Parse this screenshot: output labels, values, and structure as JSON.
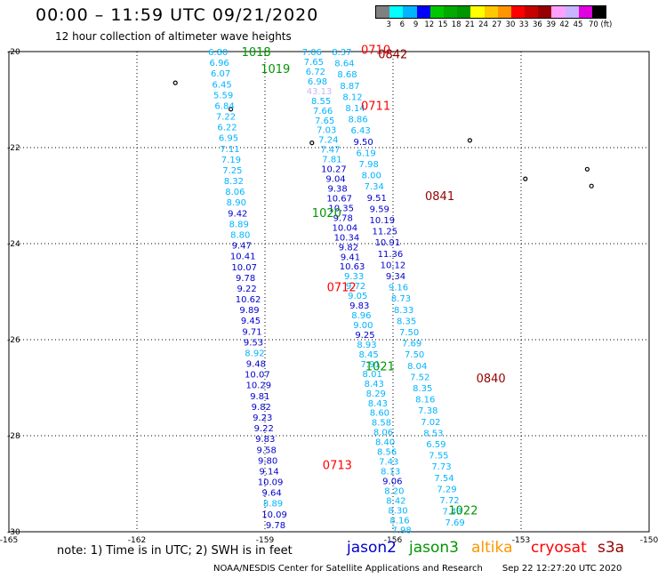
{
  "header": {
    "title": "00:00 – 11:59 UTC 09/21/2020",
    "subtitle": "12 hour collection of altimeter wave heights"
  },
  "legend": {
    "colors": [
      "#808080",
      "#00ffff",
      "#00b4ff",
      "#0000ff",
      "#00c800",
      "#00aa00",
      "#009600",
      "#ffff00",
      "#ffc800",
      "#ff9600",
      "#ff0000",
      "#c80000",
      "#960000",
      "#ffa0ff",
      "#c8b4ff",
      "#e000e0",
      "#000000"
    ],
    "labels": [
      "3",
      "6",
      "9",
      "12",
      "15",
      "18",
      "21",
      "24",
      "27",
      "30",
      "33",
      "36",
      "39",
      "42",
      "45",
      "70 (ft)"
    ]
  },
  "axes": {
    "lon_ticks": [
      "-165",
      "-162",
      "-159",
      "-156",
      "-153",
      "-150"
    ],
    "lat_ticks": [
      "-20",
      "-22",
      "-24",
      "-26",
      "-28",
      "-30"
    ],
    "lat_range": [
      -30,
      -20
    ],
    "lon_range": [
      -165,
      -150
    ]
  },
  "footer": {
    "note": "note: 1) Time is in UTC; 2) SWH is in feet",
    "satellites": [
      {
        "name": "jason2",
        "color": "#0000cc"
      },
      {
        "name": "jason3",
        "color": "#009600"
      },
      {
        "name": "altika",
        "color": "#ff9600"
      },
      {
        "name": "cryosat",
        "color": "#ff0000"
      },
      {
        "name": "s3a",
        "color": "#960000"
      }
    ],
    "credit": "NOAA/NESDIS Center for Satellite Applications and Research",
    "timestamp": "Sep 22 12:27:20 UTC 2020"
  },
  "time_labels": [
    {
      "text": "1018",
      "lat": -20.0,
      "lon": -159.55,
      "color": "#009600"
    },
    {
      "text": "1019",
      "lat": -20.35,
      "lon": -159.1,
      "color": "#009600"
    },
    {
      "text": "0710",
      "lat": -19.95,
      "lon": -156.75,
      "color": "#ff0000"
    },
    {
      "text": "0842",
      "lat": -20.05,
      "lon": -156.35,
      "color": "#960000"
    },
    {
      "text": "0711",
      "lat": -21.12,
      "lon": -156.75,
      "color": "#ff0000"
    },
    {
      "text": "0841",
      "lat": -23.0,
      "lon": -155.25,
      "color": "#960000"
    },
    {
      "text": "1020",
      "lat": -23.35,
      "lon": -157.9,
      "color": "#009600"
    },
    {
      "text": "0712",
      "lat": -24.9,
      "lon": -157.55,
      "color": "#ff0000"
    },
    {
      "text": "1021",
      "lat": -26.55,
      "lon": -156.65,
      "color": "#009600"
    },
    {
      "text": "0840",
      "lat": -26.8,
      "lon": -154.05,
      "color": "#960000"
    },
    {
      "text": "0713",
      "lat": -28.6,
      "lon": -157.65,
      "color": "#ff0000"
    },
    {
      "text": "1022",
      "lat": -29.55,
      "lon": -154.7,
      "color": "#009600"
    }
  ],
  "tracks": [
    {
      "satellite": "jason3",
      "values": [
        "6.80",
        "6.96",
        "6.07",
        "6.45",
        "5.59",
        "6.84",
        "7.22",
        "6.22",
        "6.95",
        "7.11",
        "7.19",
        "7.25",
        "8.32",
        "8.06",
        "8.90",
        "9.42",
        "8.89",
        "8.80",
        "9.47",
        "10.41",
        "10.07",
        "9.78",
        "9.22",
        "10.62",
        "9.89",
        "9.45",
        "9.71",
        "9.53",
        "8.92",
        "9.48",
        "10.07",
        "10.29",
        "9.81",
        "9.82",
        "9.23",
        "9.22",
        "9.83",
        "9.58",
        "9.80",
        "9.14",
        "10.09",
        "9.64",
        "8.89",
        "10.09",
        "9.78"
      ],
      "colors": [
        "#00b4ff",
        "#00b4ff",
        "#00b4ff",
        "#00b4ff",
        "#00b4ff",
        "#00b4ff",
        "#00b4ff",
        "#00b4ff",
        "#00b4ff",
        "#00b4ff",
        "#00b4ff",
        "#00b4ff",
        "#00b4ff",
        "#00b4ff",
        "#00b4ff",
        "#0000cc",
        "#00b4ff",
        "#00b4ff",
        "#0000cc",
        "#0000cc",
        "#0000cc",
        "#0000cc",
        "#0000cc",
        "#0000cc",
        "#0000cc",
        "#0000cc",
        "#0000cc",
        "#0000cc",
        "#00b4ff",
        "#0000cc",
        "#0000cc",
        "#0000cc",
        "#0000cc",
        "#0000cc",
        "#0000cc",
        "#0000cc",
        "#0000cc",
        "#0000cc",
        "#0000cc",
        "#0000cc",
        "#0000cc",
        "#0000cc",
        "#00b4ff",
        "#0000cc",
        "#0000cc"
      ],
      "start": {
        "lat": -20.0,
        "lon": -160.1
      },
      "end": {
        "lat": -29.85,
        "lon": -158.75
      }
    },
    {
      "satellite": "cryosat",
      "values": [
        "7.06",
        "7.65",
        "6.72",
        "6.98",
        "43.13",
        "8.55",
        "7.66",
        "7.65",
        "7.03",
        "7.24",
        "7.47",
        "7.81",
        "10.27",
        "9.04",
        "9.38",
        "10.67",
        "10.35",
        "9.78",
        "10.04",
        "10.34",
        "9.82",
        "9.41",
        "10.63",
        "9.33",
        "9.72",
        "9.05",
        "9.83",
        "8.96",
        "9.00",
        "9.25",
        "8.93",
        "8.45",
        "7.91",
        "8.01",
        "8.43",
        "8.29",
        "8.43",
        "8.60",
        "8.58",
        "8.06",
        "8.40",
        "8.56",
        "7.43",
        "8.13",
        "9.06",
        "8.20",
        "8.42",
        "8.30",
        "8.16",
        "7.98"
      ],
      "colors": [
        "#00b4ff",
        "#00b4ff",
        "#00b4ff",
        "#00b4ff",
        "#c8b4ff",
        "#00b4ff",
        "#00b4ff",
        "#00b4ff",
        "#00b4ff",
        "#00b4ff",
        "#00b4ff",
        "#00b4ff",
        "#0000cc",
        "#0000cc",
        "#0000cc",
        "#0000cc",
        "#0000cc",
        "#0000cc",
        "#0000cc",
        "#0000cc",
        "#0000cc",
        "#0000cc",
        "#0000cc",
        "#00b4ff",
        "#00b4ff",
        "#00b4ff",
        "#0000cc",
        "#00b4ff",
        "#00b4ff",
        "#0000cc",
        "#00b4ff",
        "#00b4ff",
        "#00b4ff",
        "#00b4ff",
        "#00b4ff",
        "#00b4ff",
        "#00b4ff",
        "#00b4ff",
        "#00b4ff",
        "#00b4ff",
        "#00b4ff",
        "#00b4ff",
        "#00b4ff",
        "#00b4ff",
        "#0000cc",
        "#00b4ff",
        "#00b4ff",
        "#00b4ff",
        "#00b4ff",
        "#00b4ff"
      ],
      "start": {
        "lat": -20.0,
        "lon": -157.9
      },
      "end": {
        "lat": -29.95,
        "lon": -155.8
      }
    },
    {
      "satellite": "s3a",
      "values": [
        "8.37",
        "8.64",
        "8.68",
        "8.87",
        "8.12",
        "8.14",
        "8.86",
        "6.43",
        "9.50",
        "6.19",
        "7.98",
        "8.00",
        "7.34",
        "9.51",
        "9.59",
        "10.19",
        "11.25",
        "10.91",
        "11.36",
        "10.12",
        "9.34",
        "9.16",
        "8.73",
        "8.33",
        "8.35",
        "7.50",
        "7.69",
        "7.50",
        "8.04",
        "7.52",
        "8.35",
        "8.16",
        "7.38",
        "7.02",
        "8.53",
        "6.59",
        "7.55",
        "7.73",
        "7.54",
        "7.29",
        "7.72",
        "7.43",
        "7.69"
      ],
      "colors": [
        "#00b4ff",
        "#00b4ff",
        "#00b4ff",
        "#00b4ff",
        "#00b4ff",
        "#00b4ff",
        "#00b4ff",
        "#00b4ff",
        "#0000cc",
        "#00b4ff",
        "#00b4ff",
        "#00b4ff",
        "#00b4ff",
        "#0000cc",
        "#0000cc",
        "#0000cc",
        "#0000cc",
        "#0000cc",
        "#0000cc",
        "#0000cc",
        "#0000cc",
        "#00b4ff",
        "#00b4ff",
        "#00b4ff",
        "#00b4ff",
        "#00b4ff",
        "#00b4ff",
        "#00b4ff",
        "#00b4ff",
        "#00b4ff",
        "#00b4ff",
        "#00b4ff",
        "#00b4ff",
        "#00b4ff",
        "#00b4ff",
        "#00b4ff",
        "#00b4ff",
        "#00b4ff",
        "#00b4ff",
        "#00b4ff",
        "#00b4ff",
        "#00b4ff",
        "#00b4ff"
      ],
      "start": {
        "lat": -20.0,
        "lon": -157.2
      },
      "end": {
        "lat": -29.8,
        "lon": -154.55
      }
    }
  ],
  "islands": [
    {
      "lat": -20.65,
      "lon": -161.1
    },
    {
      "lat": -21.2,
      "lon": -159.8
    },
    {
      "lat": -21.9,
      "lon": -157.9
    },
    {
      "lat": -21.85,
      "lon": -154.2
    },
    {
      "lat": -22.65,
      "lon": -152.9
    },
    {
      "lat": -22.45,
      "lon": -151.45
    },
    {
      "lat": -22.8,
      "lon": -151.35
    }
  ]
}
